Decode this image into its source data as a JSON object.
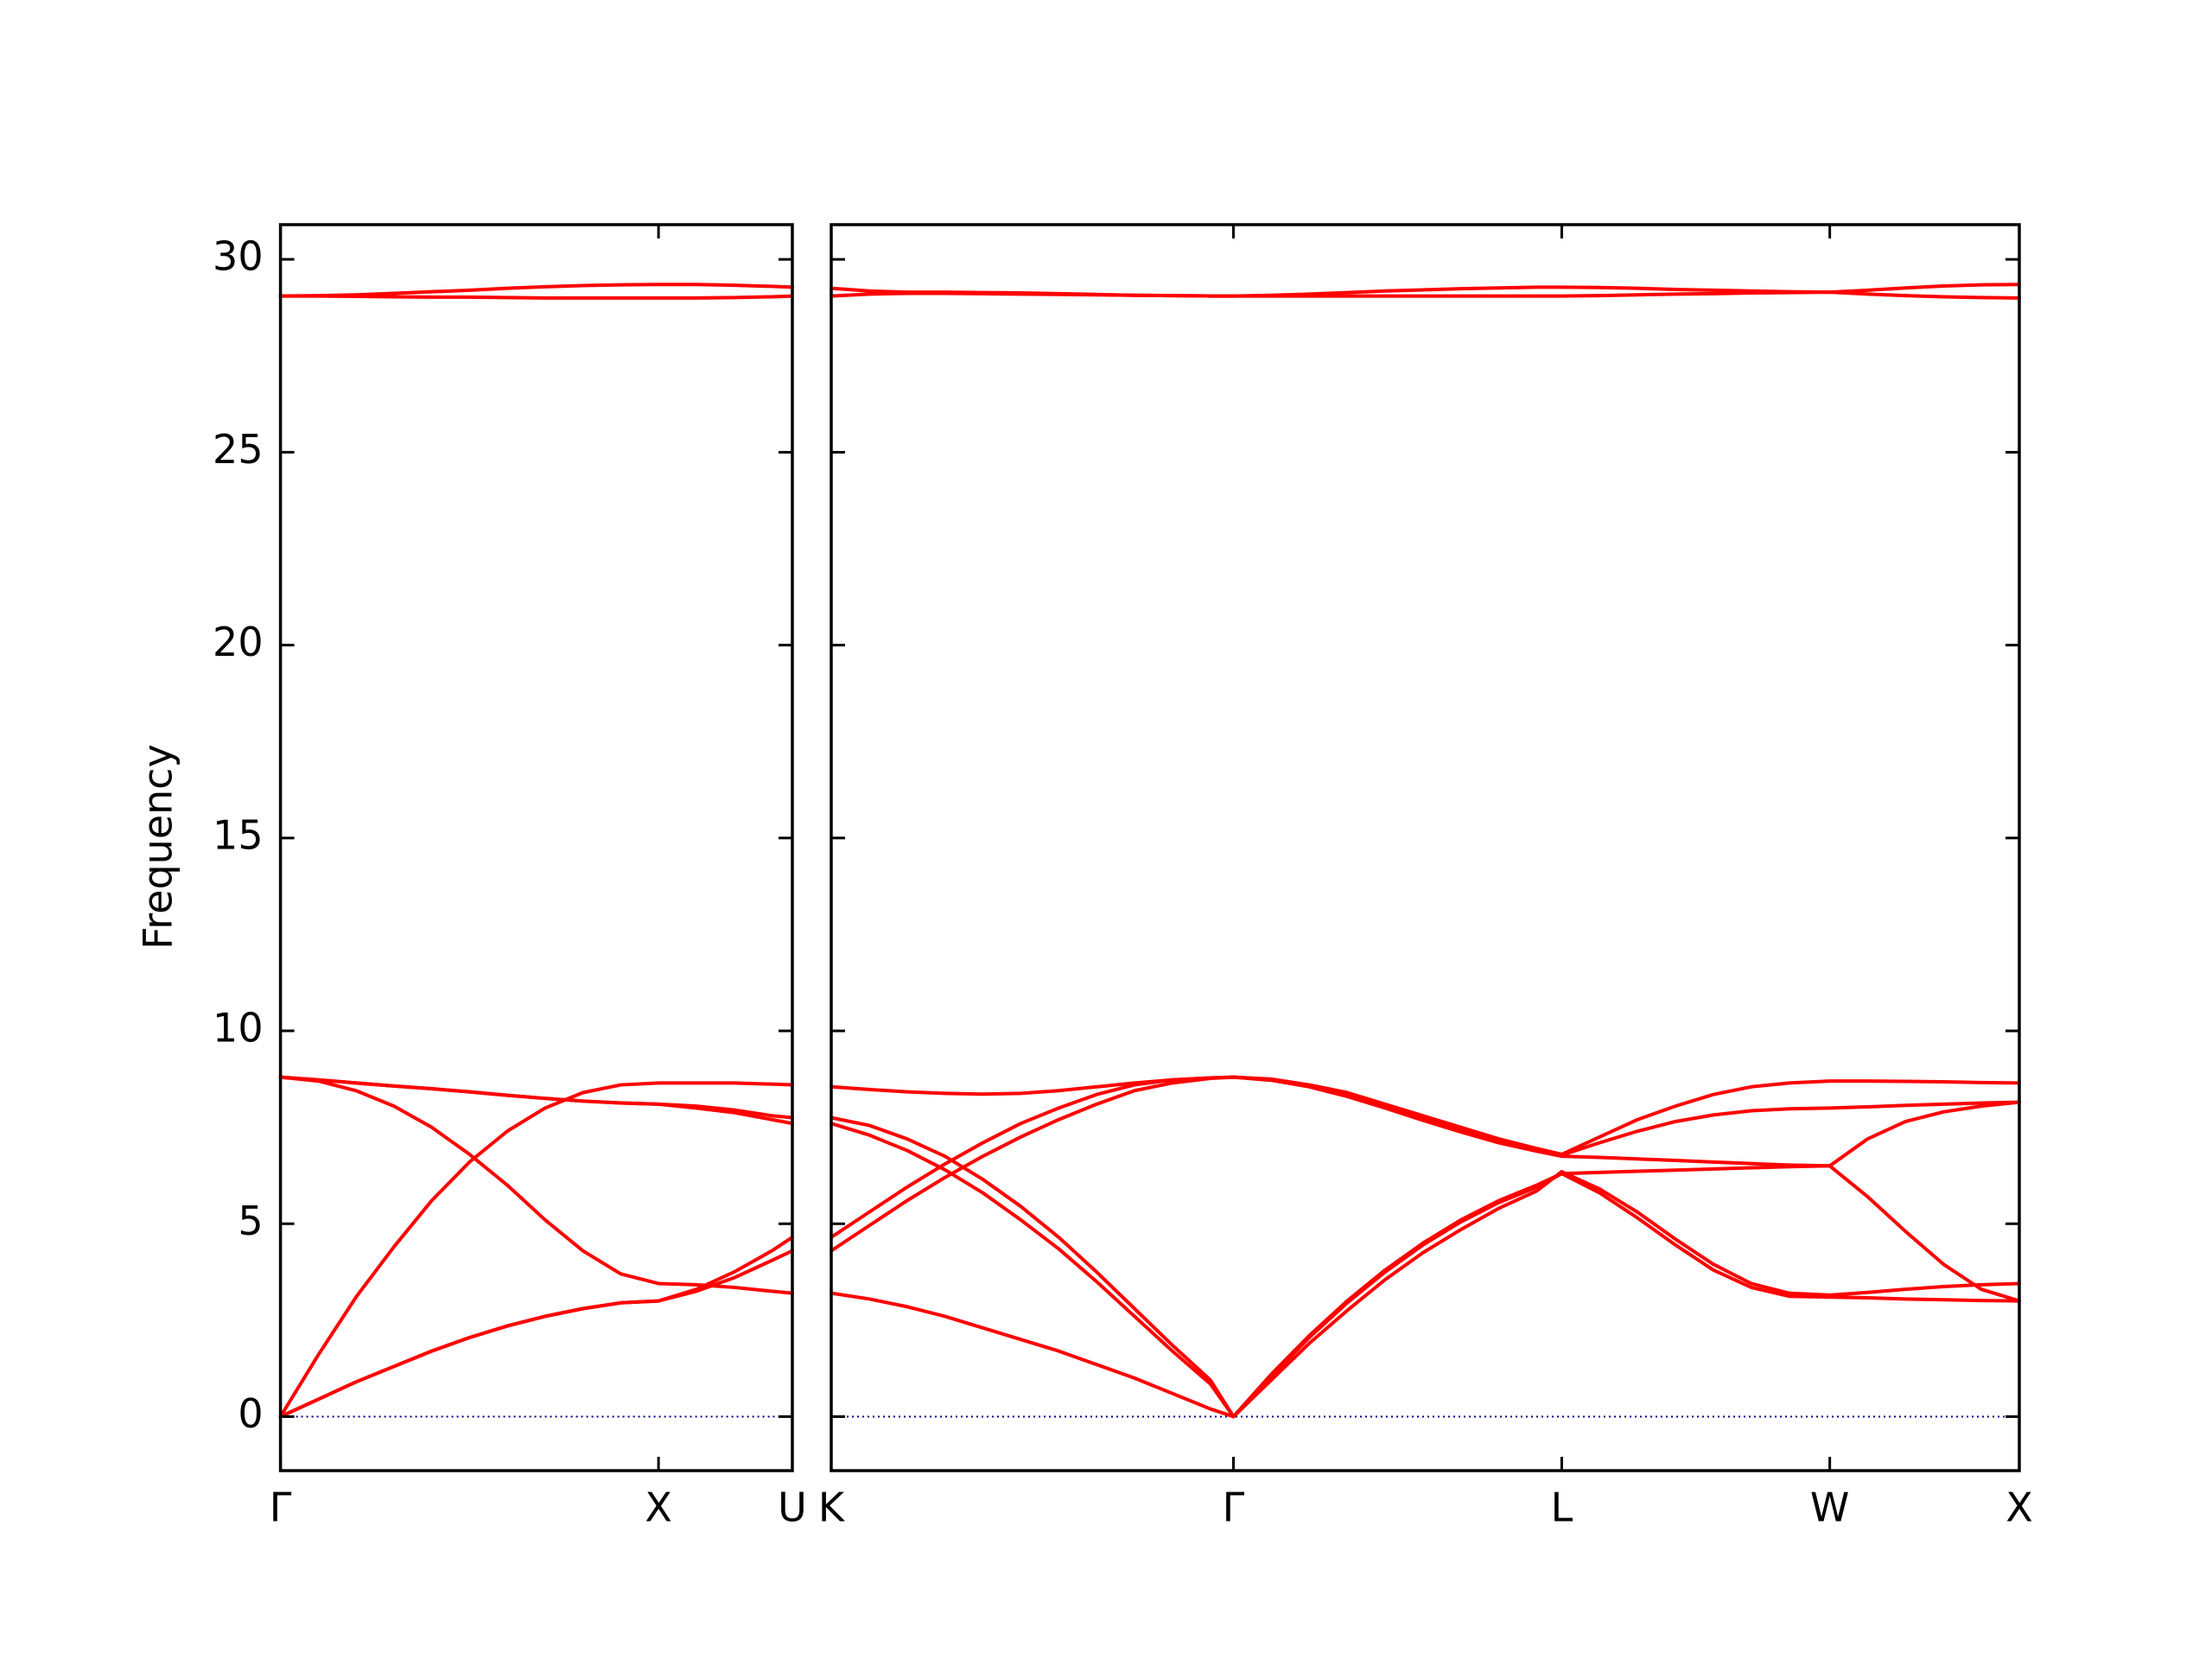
{
  "chart_data": {
    "type": "line",
    "ylabel": "Frequency",
    "ylim": [
      -1.4,
      30.9
    ],
    "yticks": [
      0,
      5,
      10,
      15,
      20,
      25,
      30
    ],
    "color": "#ff0000",
    "zero_line": {
      "value": 0,
      "color": "#00008b"
    },
    "panels": [
      {
        "xlim": [
          0,
          1.354
        ],
        "xticks": [
          {
            "value": 0,
            "label": "Γ"
          },
          {
            "value": 1,
            "label": "X"
          },
          {
            "value": 1.354,
            "label": "U"
          }
        ],
        "x": [
          0,
          0.1,
          0.2,
          0.3,
          0.4,
          0.5,
          0.6,
          0.7,
          0.8,
          0.9,
          1.0,
          1.1,
          1.2,
          1.3,
          1.354
        ],
        "series": [
          {
            "values": [
              0,
              0.45,
              0.9,
              1.3,
              1.7,
              2.05,
              2.35,
              2.6,
              2.8,
              2.95,
              3.0,
              3.25,
              3.6,
              4.05,
              4.3
            ]
          },
          {
            "values": [
              0,
              0.45,
              0.9,
              1.3,
              1.7,
              2.05,
              2.35,
              2.6,
              2.8,
              2.95,
              3.0,
              3.3,
              3.75,
              4.3,
              4.65
            ]
          },
          {
            "values": [
              0,
              1.6,
              3.1,
              4.4,
              5.6,
              6.6,
              7.4,
              8.0,
              8.4,
              8.6,
              8.65,
              8.65,
              8.65,
              8.62,
              8.6
            ]
          },
          {
            "values": [
              8.8,
              8.7,
              8.45,
              8.05,
              7.5,
              6.8,
              6.0,
              5.1,
              4.3,
              3.7,
              3.45,
              3.42,
              3.35,
              3.25,
              3.2
            ]
          },
          {
            "values": [
              8.8,
              8.73,
              8.65,
              8.57,
              8.5,
              8.42,
              8.33,
              8.25,
              8.18,
              8.13,
              8.1,
              8.05,
              7.95,
              7.8,
              7.75
            ]
          },
          {
            "values": [
              8.8,
              8.73,
              8.65,
              8.57,
              8.5,
              8.42,
              8.33,
              8.25,
              8.18,
              8.13,
              8.1,
              8.0,
              7.88,
              7.7,
              7.6
            ]
          },
          {
            "values": [
              29.05,
              29.06,
              29.08,
              29.12,
              29.16,
              29.2,
              29.25,
              29.29,
              29.32,
              29.34,
              29.35,
              29.35,
              29.33,
              29.3,
              29.28
            ]
          },
          {
            "values": [
              29.05,
              29.05,
              29.04,
              29.03,
              29.02,
              29.02,
              29.01,
              29.0,
              29.0,
              29.0,
              29.0,
              29.0,
              29.01,
              29.03,
              29.05
            ]
          }
        ]
      },
      {
        "xlim": [
          0,
          3.134
        ],
        "xticks": [
          {
            "value": 0,
            "label": "K"
          },
          {
            "value": 1.061,
            "label": "Γ"
          },
          {
            "value": 1.927,
            "label": "L"
          },
          {
            "value": 2.634,
            "label": "W"
          },
          {
            "value": 3.134,
            "label": "X"
          }
        ],
        "x": [
          0,
          0.1,
          0.2,
          0.3,
          0.4,
          0.5,
          0.6,
          0.7,
          0.8,
          0.9,
          1.0,
          1.061,
          1.161,
          1.261,
          1.361,
          1.461,
          1.561,
          1.661,
          1.761,
          1.861,
          1.927,
          2.027,
          2.127,
          2.227,
          2.327,
          2.427,
          2.527,
          2.634,
          2.734,
          2.834,
          2.934,
          3.034,
          3.134
        ],
        "series": [
          {
            "values": [
              8.55,
              8.48,
              8.42,
              8.38,
              8.36,
              8.38,
              8.45,
              8.55,
              8.65,
              8.73,
              8.78,
              8.8,
              8.75,
              8.6,
              8.4,
              8.1,
              7.8,
              7.5,
              7.2,
              6.95,
              6.8,
              7.25,
              7.7,
              8.05,
              8.35,
              8.55,
              8.65,
              8.7,
              8.7,
              8.69,
              8.68,
              8.66,
              8.65
            ]
          },
          {
            "values": [
              4.65,
              5.3,
              5.95,
              6.55,
              7.1,
              7.6,
              8.0,
              8.35,
              8.6,
              8.73,
              8.78,
              8.8,
              8.72,
              8.55,
              8.3,
              8.0,
              7.68,
              7.38,
              7.1,
              6.88,
              6.75,
              6.72,
              6.68,
              6.64,
              6.6,
              6.56,
              6.52,
              6.5,
              7.2,
              7.65,
              7.9,
              8.05,
              8.15
            ]
          },
          {
            "values": [
              4.3,
              4.95,
              5.6,
              6.2,
              6.75,
              7.25,
              7.7,
              8.1,
              8.45,
              8.65,
              8.77,
              8.8,
              8.74,
              8.58,
              8.36,
              8.06,
              7.75,
              7.45,
              7.16,
              6.92,
              6.78,
              7.1,
              7.4,
              7.65,
              7.82,
              7.93,
              7.98,
              8.0,
              8.03,
              8.07,
              8.1,
              8.13,
              8.15
            ]
          },
          {
            "values": [
              7.75,
              7.55,
              7.2,
              6.75,
              6.15,
              5.45,
              4.65,
              3.75,
              2.8,
              1.85,
              0.95,
              0,
              1.1,
              2.1,
              3.0,
              3.8,
              4.5,
              5.1,
              5.6,
              6.0,
              6.3,
              6.33,
              6.36,
              6.39,
              6.42,
              6.45,
              6.48,
              6.5,
              5.7,
              4.8,
              3.95,
              3.3,
              3.0
            ]
          },
          {
            "values": [
              7.6,
              7.3,
              6.9,
              6.4,
              5.8,
              5.1,
              4.35,
              3.5,
              2.6,
              1.7,
              0.85,
              0,
              0.95,
              1.9,
              2.75,
              3.55,
              4.25,
              4.85,
              5.4,
              5.85,
              6.35,
              5.9,
              5.3,
              4.6,
              3.95,
              3.45,
              3.2,
              3.15,
              3.22,
              3.3,
              3.37,
              3.42,
              3.45
            ]
          },
          {
            "values": [
              3.2,
              3.05,
              2.85,
              2.6,
              2.3,
              2.0,
              1.7,
              1.35,
              1.0,
              0.6,
              0.2,
              0,
              1.05,
              2.05,
              2.95,
              3.75,
              4.45,
              5.05,
              5.55,
              5.95,
              6.3,
              5.8,
              5.15,
              4.45,
              3.8,
              3.35,
              3.12,
              3.1,
              3.08,
              3.05,
              3.03,
              3.01,
              3.0
            ]
          },
          {
            "values": [
              29.25,
              29.18,
              29.15,
              29.15,
              29.14,
              29.13,
              29.11,
              29.09,
              29.07,
              29.06,
              29.05,
              29.05,
              29.07,
              29.1,
              29.14,
              29.18,
              29.21,
              29.24,
              29.26,
              29.28,
              29.28,
              29.27,
              29.25,
              29.22,
              29.2,
              29.18,
              29.16,
              29.15,
              29.2,
              29.26,
              29.31,
              29.34,
              29.35
            ]
          },
          {
            "values": [
              29.05,
              29.1,
              29.12,
              29.12,
              29.11,
              29.1,
              29.09,
              29.08,
              29.07,
              29.06,
              29.05,
              29.05,
              29.05,
              29.05,
              29.05,
              29.05,
              29.05,
              29.05,
              29.05,
              29.05,
              29.05,
              29.06,
              29.08,
              29.1,
              29.11,
              29.13,
              29.14,
              29.15,
              29.1,
              29.06,
              29.03,
              29.01,
              29.0
            ]
          }
        ]
      }
    ]
  }
}
